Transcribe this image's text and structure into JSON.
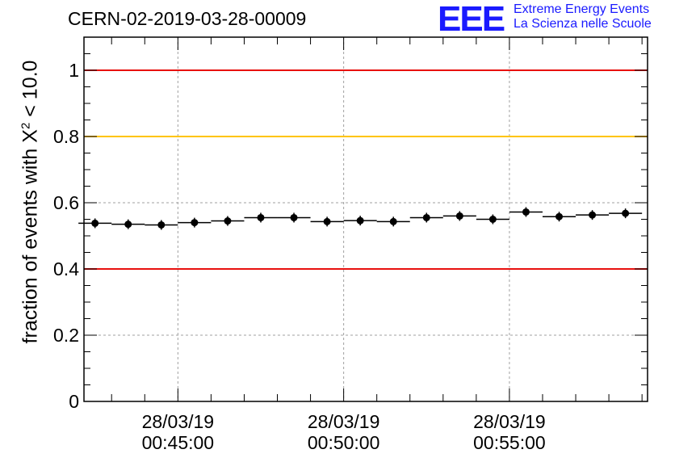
{
  "header": {
    "run_id": "CERN-02-2019-03-28-00009",
    "logo_text": "EEE",
    "brand_line1": "Extreme Energy Events",
    "brand_line2": "La Scienza nelle Scuole"
  },
  "colors": {
    "upper_limit_line": "#e8110f",
    "target_line": "#ffc400",
    "lower_limit_line": "#e8110f",
    "points": "#000000",
    "grid": "#a0a0a0"
  },
  "chart_data": {
    "type": "scatter",
    "title": "CERN-02-2019-03-28-00009",
    "ylabel_prefix": "fraction of events with X",
    "ylabel_exponent": "2",
    "ylabel_suffix": " < 10.0",
    "ylim": [
      0,
      1.1
    ],
    "y_ticks": [
      "0",
      "0.2",
      "0.4",
      "0.6",
      "0.8",
      "1"
    ],
    "x_range": [
      "00:42:10",
      "00:59:10"
    ],
    "x_ticks": [
      {
        "time": "00:45:00",
        "date": "28/03/19",
        "time_label": "00:45:00"
      },
      {
        "time": "00:50:00",
        "date": "28/03/19",
        "time_label": "00:50:00"
      },
      {
        "time": "00:55:00",
        "date": "28/03/19",
        "time_label": "00:55:00"
      }
    ],
    "grid": true,
    "reference_lines": [
      {
        "y": 1.0,
        "color": "#e8110f"
      },
      {
        "y": 0.8,
        "color": "#ffc400"
      },
      {
        "y": 0.4,
        "color": "#e8110f"
      }
    ],
    "points": [
      {
        "x": "00:42:30",
        "y": 0.538
      },
      {
        "x": "00:43:30",
        "y": 0.535
      },
      {
        "x": "00:44:30",
        "y": 0.533
      },
      {
        "x": "00:45:30",
        "y": 0.54
      },
      {
        "x": "00:46:30",
        "y": 0.545
      },
      {
        "x": "00:47:30",
        "y": 0.555
      },
      {
        "x": "00:48:30",
        "y": 0.555
      },
      {
        "x": "00:49:30",
        "y": 0.543
      },
      {
        "x": "00:50:30",
        "y": 0.546
      },
      {
        "x": "00:51:30",
        "y": 0.543
      },
      {
        "x": "00:52:30",
        "y": 0.555
      },
      {
        "x": "00:53:30",
        "y": 0.56
      },
      {
        "x": "00:54:30",
        "y": 0.55
      },
      {
        "x": "00:55:30",
        "y": 0.572
      },
      {
        "x": "00:56:30",
        "y": 0.558
      },
      {
        "x": "00:57:30",
        "y": 0.563
      },
      {
        "x": "00:58:30",
        "y": 0.568
      }
    ],
    "bin_width_seconds": 60
  }
}
